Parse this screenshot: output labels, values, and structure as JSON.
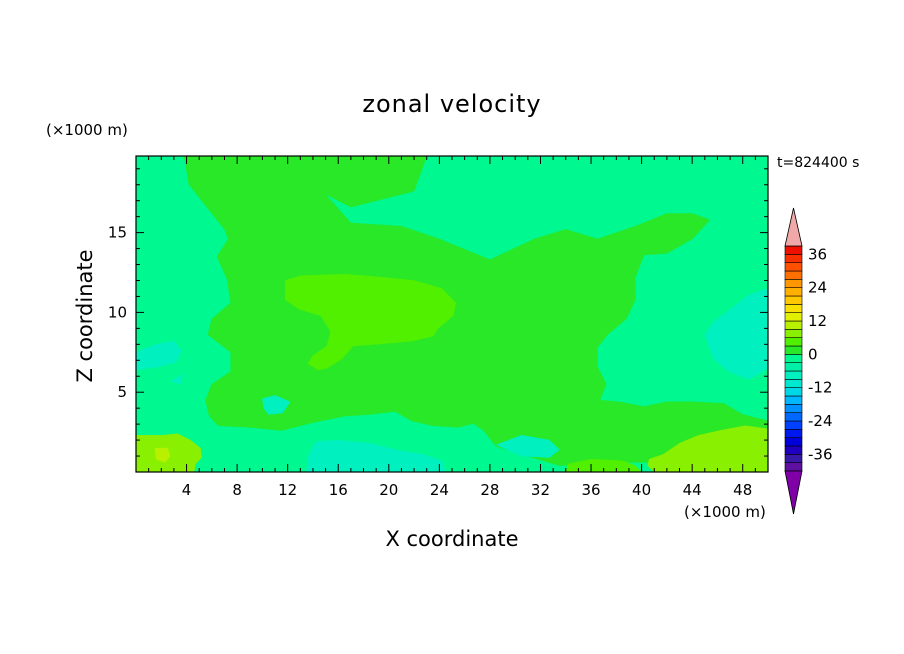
{
  "chart_data": {
    "type": "heatmap",
    "title": "zonal velocity",
    "xlabel": "X coordinate",
    "ylabel": "Z coordinate",
    "x_unit": "(×1000 m)",
    "y_unit": "(×1000 m)",
    "timestamp": "t=824400 s",
    "xlim": [
      0,
      50
    ],
    "ylim": [
      0,
      19.8
    ],
    "x_ticks": [
      4,
      8,
      12,
      16,
      20,
      24,
      28,
      32,
      36,
      40,
      44,
      48
    ],
    "y_ticks": [
      5,
      10,
      15
    ],
    "colorbar": {
      "ticks": [
        36,
        24,
        12,
        0,
        -12,
        -24,
        -36
      ],
      "levels": [
        {
          "from": -42,
          "to": -39,
          "color": "#6010a0"
        },
        {
          "from": -39,
          "to": -36,
          "color": "#3818a8"
        },
        {
          "from": -36,
          "to": -33,
          "color": "#2000c0"
        },
        {
          "from": -33,
          "to": -30,
          "color": "#0000d8"
        },
        {
          "from": -30,
          "to": -27,
          "color": "#0018f0"
        },
        {
          "from": -27,
          "to": -24,
          "color": "#0040ff"
        },
        {
          "from": -24,
          "to": -21,
          "color": "#0068ff"
        },
        {
          "from": -21,
          "to": -18,
          "color": "#0090ff"
        },
        {
          "from": -18,
          "to": -15,
          "color": "#00b8ff"
        },
        {
          "from": -15,
          "to": -12,
          "color": "#00d8e8"
        },
        {
          "from": -12,
          "to": -9,
          "color": "#00e8d0"
        },
        {
          "from": -9,
          "to": -6,
          "color": "#00f0c0"
        },
        {
          "from": -6,
          "to": -3,
          "color": "#00f0a8"
        },
        {
          "from": -3,
          "to": 0,
          "color": "#00f890"
        },
        {
          "from": 0,
          "to": 3,
          "color": "#28e828"
        },
        {
          "from": 3,
          "to": 6,
          "color": "#50f000"
        },
        {
          "from": 6,
          "to": 9,
          "color": "#88f000"
        },
        {
          "from": 9,
          "to": 12,
          "color": "#b8f000"
        },
        {
          "from": 12,
          "to": 15,
          "color": "#e0f000"
        },
        {
          "from": 15,
          "to": 18,
          "color": "#f8e000"
        },
        {
          "from": 18,
          "to": 21,
          "color": "#ffc800"
        },
        {
          "from": 21,
          "to": 24,
          "color": "#ffb000"
        },
        {
          "from": 24,
          "to": 27,
          "color": "#ff9800"
        },
        {
          "from": 27,
          "to": 30,
          "color": "#ff7000"
        },
        {
          "from": 30,
          "to": 33,
          "color": "#ff5000"
        },
        {
          "from": 33,
          "to": 36,
          "color": "#f83000"
        },
        {
          "from": 36,
          "to": 39,
          "color": "#f01000"
        }
      ],
      "overflow_high_color": "#f0a8a8",
      "overflow_low_color": "#8000a8"
    },
    "regions": [
      {
        "name": "background",
        "value": -2,
        "color": "#00f890",
        "polygon": [
          [
            0,
            0
          ],
          [
            50,
            0
          ],
          [
            50,
            19.8
          ],
          [
            0,
            19.8
          ]
        ]
      },
      {
        "name": "upper-main-positive",
        "value": 1.5,
        "color": "#28e828",
        "polygon": [
          [
            3.8,
            19.8
          ],
          [
            23,
            19.8
          ],
          [
            22,
            17.6
          ],
          [
            17,
            16.6
          ],
          [
            15,
            17.4
          ],
          [
            17,
            15.6
          ],
          [
            21,
            15.4
          ],
          [
            24,
            14.6
          ],
          [
            28,
            13.3
          ],
          [
            31.5,
            14.6
          ],
          [
            34,
            15.2
          ],
          [
            36.5,
            14.6
          ],
          [
            39.5,
            15.4
          ],
          [
            42,
            16.2
          ],
          [
            44,
            16.2
          ],
          [
            45.4,
            15.8
          ],
          [
            44,
            14.6
          ],
          [
            42,
            13.7
          ],
          [
            40.2,
            13.6
          ],
          [
            39.5,
            12.2
          ],
          [
            39.5,
            10.8
          ],
          [
            38.8,
            9.6
          ],
          [
            37.3,
            8.6
          ],
          [
            36.5,
            7.8
          ],
          [
            36.5,
            6.6
          ],
          [
            37.2,
            5.5
          ],
          [
            36.7,
            4.5
          ],
          [
            38.2,
            4.4
          ],
          [
            40.2,
            4.1
          ],
          [
            42,
            4.4
          ],
          [
            44,
            4.4
          ],
          [
            46.5,
            4.3
          ],
          [
            48,
            3.6
          ],
          [
            50,
            3.2
          ],
          [
            50,
            1.2
          ],
          [
            47,
            1.0
          ],
          [
            44,
            1.0
          ],
          [
            41,
            0.6
          ],
          [
            38,
            0.6
          ],
          [
            36,
            0.5
          ],
          [
            33.5,
            0.4
          ],
          [
            31,
            1.0
          ],
          [
            28.5,
            1.6
          ],
          [
            27.5,
            2.6
          ],
          [
            26.2,
            3.3
          ],
          [
            26.2,
            4.0
          ],
          [
            28,
            4.5
          ],
          [
            29,
            4.8
          ],
          [
            29,
            4.0
          ],
          [
            27.5,
            3.2
          ],
          [
            25.5,
            2.8
          ],
          [
            23.5,
            2.9
          ],
          [
            21.8,
            3.2
          ],
          [
            20.5,
            3.8
          ],
          [
            18.5,
            3.6
          ],
          [
            16.5,
            3.5
          ],
          [
            14,
            3.1
          ],
          [
            11.5,
            2.6
          ],
          [
            9,
            2.8
          ],
          [
            6.5,
            2.9
          ],
          [
            5.8,
            3.5
          ],
          [
            5.5,
            4.5
          ],
          [
            6,
            5.5
          ],
          [
            7.5,
            6.3
          ],
          [
            7.5,
            7.5
          ],
          [
            5.7,
            8.6
          ],
          [
            6,
            9.6
          ],
          [
            7.5,
            10.6
          ],
          [
            7.2,
            12.1
          ],
          [
            6.4,
            13.5
          ],
          [
            7.3,
            14.6
          ],
          [
            7,
            15.2
          ],
          [
            5.8,
            16.4
          ],
          [
            4.2,
            18
          ]
        ]
      },
      {
        "name": "central-positive",
        "value": 5,
        "color": "#50f000",
        "polygon": [
          [
            11.8,
            12
          ],
          [
            13,
            12.3
          ],
          [
            16.5,
            12.4
          ],
          [
            19.5,
            12.2
          ],
          [
            22,
            12
          ],
          [
            24.2,
            11.5
          ],
          [
            25.3,
            10.6
          ],
          [
            25.1,
            9.8
          ],
          [
            23.9,
            9
          ],
          [
            23.5,
            8.5
          ],
          [
            21.8,
            8.2
          ],
          [
            19,
            8
          ],
          [
            17.2,
            7.9
          ],
          [
            16.3,
            7.1
          ],
          [
            15.1,
            6.5
          ],
          [
            14.4,
            6.4
          ],
          [
            13.6,
            6.8
          ],
          [
            14,
            7.3
          ],
          [
            15.1,
            7.9
          ],
          [
            15.4,
            8.8
          ],
          [
            14.6,
            9.8
          ],
          [
            12.9,
            10.2
          ],
          [
            11.8,
            10.8
          ]
        ]
      },
      {
        "name": "lower-left-positive",
        "value": 7,
        "color": "#88f000",
        "polygon": [
          [
            0,
            2.3
          ],
          [
            2.1,
            2.3
          ],
          [
            3.3,
            2.4
          ],
          [
            4.3,
            2.0
          ],
          [
            5.1,
            1.5
          ],
          [
            5.2,
            0.9
          ],
          [
            4.7,
            0.5
          ],
          [
            4.6,
            0
          ],
          [
            0,
            0
          ]
        ]
      },
      {
        "name": "lower-left-core",
        "value": 10,
        "color": "#b8f000",
        "polygon": [
          [
            1.5,
            1.5
          ],
          [
            2.5,
            1.5
          ],
          [
            2.7,
            1.0
          ],
          [
            2.3,
            0.6
          ],
          [
            1.6,
            0.8
          ]
        ]
      },
      {
        "name": "lower-right-positive",
        "value": 6,
        "color": "#88f000",
        "polygon": [
          [
            50,
            2.7
          ],
          [
            48.2,
            2.9
          ],
          [
            46.2,
            2.6
          ],
          [
            44.5,
            2.3
          ],
          [
            43,
            1.8
          ],
          [
            41.7,
            1.1
          ],
          [
            40.6,
            0.8
          ],
          [
            40.5,
            0.4
          ],
          [
            41,
            0
          ],
          [
            50,
            0
          ]
        ]
      },
      {
        "name": "bottom-center-positive",
        "value": 4,
        "color": "#50f000",
        "polygon": [
          [
            36,
            0.8
          ],
          [
            38.5,
            0.7
          ],
          [
            39.5,
            0.4
          ],
          [
            40,
            0
          ],
          [
            34,
            0
          ],
          [
            34.2,
            0.5
          ]
        ]
      },
      {
        "name": "right-negative",
        "value": -8,
        "color": "#00f0c0",
        "polygon": [
          [
            50,
            11.5
          ],
          [
            48.5,
            11.1
          ],
          [
            46.7,
            10
          ],
          [
            45.7,
            9.4
          ],
          [
            45,
            8.6
          ],
          [
            45.7,
            7.1
          ],
          [
            46.9,
            6.3
          ],
          [
            48.5,
            5.8
          ],
          [
            50,
            6.5
          ]
        ]
      },
      {
        "name": "left-negative",
        "value": -7,
        "color": "#00f0c0",
        "polygon": [
          [
            0,
            7.5
          ],
          [
            1.6,
            8.0
          ],
          [
            3.0,
            8.2
          ],
          [
            3.6,
            7.6
          ],
          [
            3.2,
            6.9
          ],
          [
            1.8,
            6.6
          ],
          [
            0,
            6.4
          ]
        ]
      },
      {
        "name": "left-negative-small",
        "value": -7,
        "color": "#00f0c0",
        "polygon": [
          [
            2.8,
            5.7
          ],
          [
            3.7,
            6.1
          ],
          [
            3.5,
            5.5
          ]
        ]
      },
      {
        "name": "bottom-center-negative",
        "value": -8,
        "color": "#00f0c0",
        "polygon": [
          [
            14.2,
            1.9
          ],
          [
            16,
            2.0
          ],
          [
            18.5,
            1.8
          ],
          [
            20.5,
            1.4
          ],
          [
            22.7,
            1.1
          ],
          [
            24.2,
            0.7
          ],
          [
            24.5,
            0
          ],
          [
            13.5,
            0
          ],
          [
            13.6,
            0.9
          ]
        ]
      },
      {
        "name": "center-negative-small",
        "value": -7,
        "color": "#00f0c0",
        "polygon": [
          [
            10,
            4.6
          ],
          [
            11,
            4.8
          ],
          [
            12.2,
            4.4
          ],
          [
            11.6,
            3.7
          ],
          [
            10.5,
            3.6
          ],
          [
            10.1,
            4.0
          ]
        ]
      },
      {
        "name": "right-bottom-negative",
        "value": -7,
        "color": "#00f0c0",
        "polygon": [
          [
            28.5,
            1.7
          ],
          [
            30.5,
            2.3
          ],
          [
            32.7,
            2.0
          ],
          [
            33.5,
            1.4
          ],
          [
            32.7,
            0.9
          ],
          [
            30.5,
            1.0
          ]
        ]
      }
    ]
  }
}
